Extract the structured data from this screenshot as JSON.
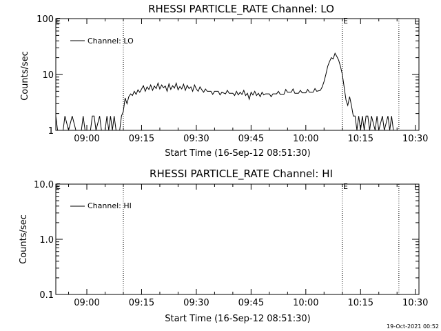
{
  "footer_timestamp": "19-Oct-2021 00:52",
  "chart_data": [
    {
      "type": "line",
      "title": "RHESSI PARTICLE_RATE Channel: LO",
      "xlabel": "Start Time (16-Sep-12 08:51:30)",
      "ylabel": "Counts/sec",
      "y_scale": "log",
      "ylim": [
        1,
        100
      ],
      "y_ticks": [
        1,
        10,
        100
      ],
      "y_tick_labels": [
        "1",
        "10",
        "100"
      ],
      "xlim": [
        "08:51:30",
        "10:31:00"
      ],
      "x_tick_labels": [
        "09:00",
        "09:15",
        "09:30",
        "09:45",
        "10:00",
        "10:15",
        "10:30"
      ],
      "grid": false,
      "legend": {
        "placement": "top-left",
        "entries": [
          "Channel: LO"
        ]
      },
      "markers": [
        {
          "time": "09:10:00",
          "label": ""
        },
        {
          "time": "10:10:00",
          "label": "E"
        },
        {
          "time": "10:25:30",
          "label": ""
        }
      ],
      "edge_marker_label": "E",
      "series": [
        {
          "name": "Channel: LO",
          "points": [
            [
              "08:51:30",
              1.8
            ],
            [
              "08:52:00",
              1.0
            ],
            [
              "08:53:30",
              1.0
            ],
            [
              "08:54:00",
              1.8
            ],
            [
              "08:55:00",
              1.0
            ],
            [
              "08:56:00",
              1.8
            ],
            [
              "08:57:00",
              1.0
            ],
            [
              "08:58:30",
              1.0
            ],
            [
              "08:59:00",
              1.8
            ],
            [
              "08:59:30",
              1.0
            ],
            [
              "09:01:00",
              1.0
            ],
            [
              "09:01:30",
              1.8
            ],
            [
              "09:02:00",
              1.8
            ],
            [
              "09:02:30",
              1.0
            ],
            [
              "09:03:30",
              1.8
            ],
            [
              "09:04:00",
              1.0
            ],
            [
              "09:05:00",
              1.0
            ],
            [
              "09:05:30",
              1.8
            ],
            [
              "09:06:00",
              1.0
            ],
            [
              "09:06:30",
              1.8
            ],
            [
              "09:07:00",
              1.0
            ],
            [
              "09:07:30",
              1.8
            ],
            [
              "09:08:00",
              1.0
            ],
            [
              "09:09:00",
              1.0
            ],
            [
              "09:09:30",
              1.8
            ],
            [
              "09:10:00",
              2.2
            ],
            [
              "09:10:30",
              3.8
            ],
            [
              "09:11:00",
              3.0
            ],
            [
              "09:11:30",
              4.0
            ],
            [
              "09:12:00",
              4.5
            ],
            [
              "09:12:30",
              4.2
            ],
            [
              "09:13:00",
              5.0
            ],
            [
              "09:13:30",
              4.4
            ],
            [
              "09:14:00",
              5.3
            ],
            [
              "09:14:30",
              4.8
            ],
            [
              "09:15:00",
              5.5
            ],
            [
              "09:15:30",
              6.3
            ],
            [
              "09:16:00",
              5.0
            ],
            [
              "09:16:30",
              6.0
            ],
            [
              "09:17:00",
              5.4
            ],
            [
              "09:17:30",
              6.5
            ],
            [
              "09:18:00",
              5.2
            ],
            [
              "09:18:30",
              6.2
            ],
            [
              "09:19:00",
              5.6
            ],
            [
              "09:19:30",
              7.0
            ],
            [
              "09:20:00",
              5.5
            ],
            [
              "09:20:30",
              6.5
            ],
            [
              "09:21:00",
              5.8
            ],
            [
              "09:21:30",
              6.2
            ],
            [
              "09:22:00",
              5.0
            ],
            [
              "09:22:30",
              6.8
            ],
            [
              "09:23:00",
              5.4
            ],
            [
              "09:23:30",
              6.3
            ],
            [
              "09:24:00",
              5.7
            ],
            [
              "09:24:30",
              7.0
            ],
            [
              "09:25:00",
              5.3
            ],
            [
              "09:25:30",
              6.1
            ],
            [
              "09:26:00",
              5.5
            ],
            [
              "09:26:30",
              6.7
            ],
            [
              "09:27:00",
              5.2
            ],
            [
              "09:27:30",
              6.4
            ],
            [
              "09:28:00",
              5.6
            ],
            [
              "09:28:30",
              6.0
            ],
            [
              "09:29:00",
              5.0
            ],
            [
              "09:29:30",
              6.5
            ],
            [
              "09:30:00",
              5.5
            ],
            [
              "09:30:30",
              5.0
            ],
            [
              "09:31:00",
              6.0
            ],
            [
              "09:31:30",
              5.3
            ],
            [
              "09:32:00",
              4.8
            ],
            [
              "09:32:30",
              5.5
            ],
            [
              "09:33:00",
              5.0
            ],
            [
              "09:34:00",
              5.0
            ],
            [
              "09:34:30",
              4.4
            ],
            [
              "09:35:00",
              5.0
            ],
            [
              "09:36:00",
              5.0
            ],
            [
              "09:36:30",
              4.3
            ],
            [
              "09:37:00",
              4.8
            ],
            [
              "09:38:00",
              4.5
            ],
            [
              "09:38:30",
              5.2
            ],
            [
              "09:39:00",
              4.6
            ],
            [
              "09:40:00",
              4.6
            ],
            [
              "09:40:30",
              4.2
            ],
            [
              "09:41:00",
              5.0
            ],
            [
              "09:41:30",
              4.3
            ],
            [
              "09:42:00",
              4.8
            ],
            [
              "09:42:30",
              4.4
            ],
            [
              "09:43:00",
              5.2
            ],
            [
              "09:43:30",
              4.2
            ],
            [
              "09:44:00",
              4.6
            ],
            [
              "09:44:30",
              3.6
            ],
            [
              "09:45:00",
              4.8
            ],
            [
              "09:45:30",
              4.3
            ],
            [
              "09:46:00",
              5.0
            ],
            [
              "09:46:30",
              4.2
            ],
            [
              "09:47:00",
              4.6
            ],
            [
              "09:47:30",
              4.0
            ],
            [
              "09:48:00",
              4.8
            ],
            [
              "09:48:30",
              4.3
            ],
            [
              "09:49:00",
              4.5
            ],
            [
              "09:50:00",
              4.5
            ],
            [
              "09:50:30",
              4.0
            ],
            [
              "09:51:00",
              4.5
            ],
            [
              "09:52:00",
              4.5
            ],
            [
              "09:52:30",
              5.0
            ],
            [
              "09:53:00",
              4.4
            ],
            [
              "09:54:00",
              4.4
            ],
            [
              "09:54:30",
              5.4
            ],
            [
              "09:55:00",
              4.8
            ],
            [
              "09:56:00",
              4.8
            ],
            [
              "09:56:30",
              5.5
            ],
            [
              "09:57:00",
              4.6
            ],
            [
              "09:58:00",
              4.6
            ],
            [
              "09:58:30",
              5.2
            ],
            [
              "09:59:00",
              4.7
            ],
            [
              "10:00:00",
              4.7
            ],
            [
              "10:00:30",
              5.4
            ],
            [
              "10:01:00",
              4.8
            ],
            [
              "10:02:00",
              4.8
            ],
            [
              "10:02:30",
              5.6
            ],
            [
              "10:03:00",
              5.0
            ],
            [
              "10:04:00",
              5.2
            ],
            [
              "10:04:30",
              6.0
            ],
            [
              "10:05:00",
              7.5
            ],
            [
              "10:05:30",
              10.0
            ],
            [
              "10:06:00",
              14.0
            ],
            [
              "10:06:30",
              17.0
            ],
            [
              "10:07:00",
              20.0
            ],
            [
              "10:07:30",
              19.0
            ],
            [
              "10:08:00",
              24.0
            ],
            [
              "10:08:30",
              21.0
            ],
            [
              "10:09:00",
              18.0
            ],
            [
              "10:09:30",
              14.0
            ],
            [
              "10:10:00",
              10.0
            ],
            [
              "10:10:30",
              6.0
            ],
            [
              "10:11:00",
              3.5
            ],
            [
              "10:11:30",
              2.8
            ],
            [
              "10:12:00",
              4.0
            ],
            [
              "10:12:30",
              2.8
            ],
            [
              "10:13:00",
              1.8
            ],
            [
              "10:13:30",
              1.8
            ],
            [
              "10:14:00",
              1.0
            ],
            [
              "10:14:30",
              1.8
            ],
            [
              "10:15:00",
              1.0
            ],
            [
              "10:15:30",
              1.8
            ],
            [
              "10:16:00",
              1.0
            ],
            [
              "10:16:30",
              1.8
            ],
            [
              "10:17:00",
              1.8
            ],
            [
              "10:17:30",
              1.0
            ],
            [
              "10:18:00",
              1.8
            ],
            [
              "10:19:00",
              1.0
            ],
            [
              "10:19:30",
              1.8
            ],
            [
              "10:20:00",
              1.0
            ],
            [
              "10:21:00",
              1.8
            ],
            [
              "10:21:30",
              1.0
            ],
            [
              "10:22:30",
              1.8
            ],
            [
              "10:23:00",
              1.0
            ],
            [
              "10:23:30",
              1.8
            ],
            [
              "10:24:00",
              1.0
            ],
            [
              "10:25:00",
              1.0
            ]
          ]
        }
      ]
    },
    {
      "type": "line",
      "title": "RHESSI PARTICLE_RATE Channel: HI",
      "xlabel": "Start Time (16-Sep-12 08:51:30)",
      "ylabel": "Counts/sec",
      "y_scale": "log",
      "ylim": [
        0.1,
        10
      ],
      "y_ticks": [
        0.1,
        1,
        10
      ],
      "y_tick_labels": [
        "0.1",
        "1.0",
        "10.0"
      ],
      "xlim": [
        "08:51:30",
        "10:31:00"
      ],
      "x_tick_labels": [
        "09:00",
        "09:15",
        "09:30",
        "09:45",
        "10:00",
        "10:15",
        "10:30"
      ],
      "grid": false,
      "legend": {
        "placement": "top-left",
        "entries": [
          "Channel: HI"
        ]
      },
      "markers": [
        {
          "time": "09:10:00",
          "label": ""
        },
        {
          "time": "10:10:00",
          "label": "E"
        },
        {
          "time": "10:25:30",
          "label": ""
        }
      ],
      "edge_marker_label": "E",
      "series": [
        {
          "name": "Channel: HI",
          "points": []
        }
      ]
    }
  ]
}
